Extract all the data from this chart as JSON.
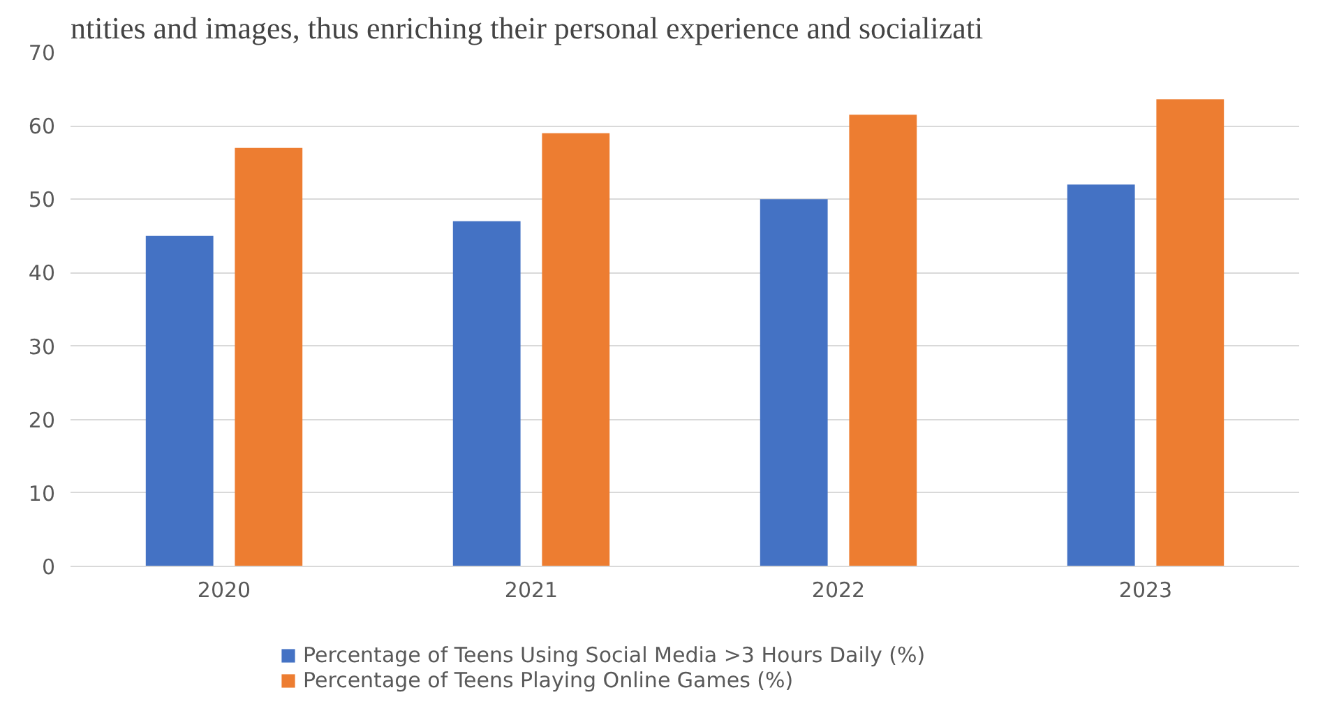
{
  "chart_data": {
    "type": "bar",
    "categories": [
      "2020",
      "2021",
      "2022",
      "2023"
    ],
    "series": [
      {
        "name": "Percentage of Teens Using Social Media >3 Hours Daily (%)",
        "color": "#4472c4",
        "values": [
          45,
          47,
          50,
          52
        ]
      },
      {
        "name": "Percentage of Teens Playing Online Games (%)",
        "color": "#ed7d31",
        "values": [
          57,
          59,
          61.5,
          63.6
        ]
      }
    ],
    "ylim": [
      0,
      70
    ],
    "yticks": [
      0,
      10,
      20,
      30,
      40,
      50,
      60,
      70
    ],
    "grid": "y",
    "legend": "bottom",
    "annotations": [
      "ntities and images, thus enriching their personal experience and socializati"
    ]
  }
}
